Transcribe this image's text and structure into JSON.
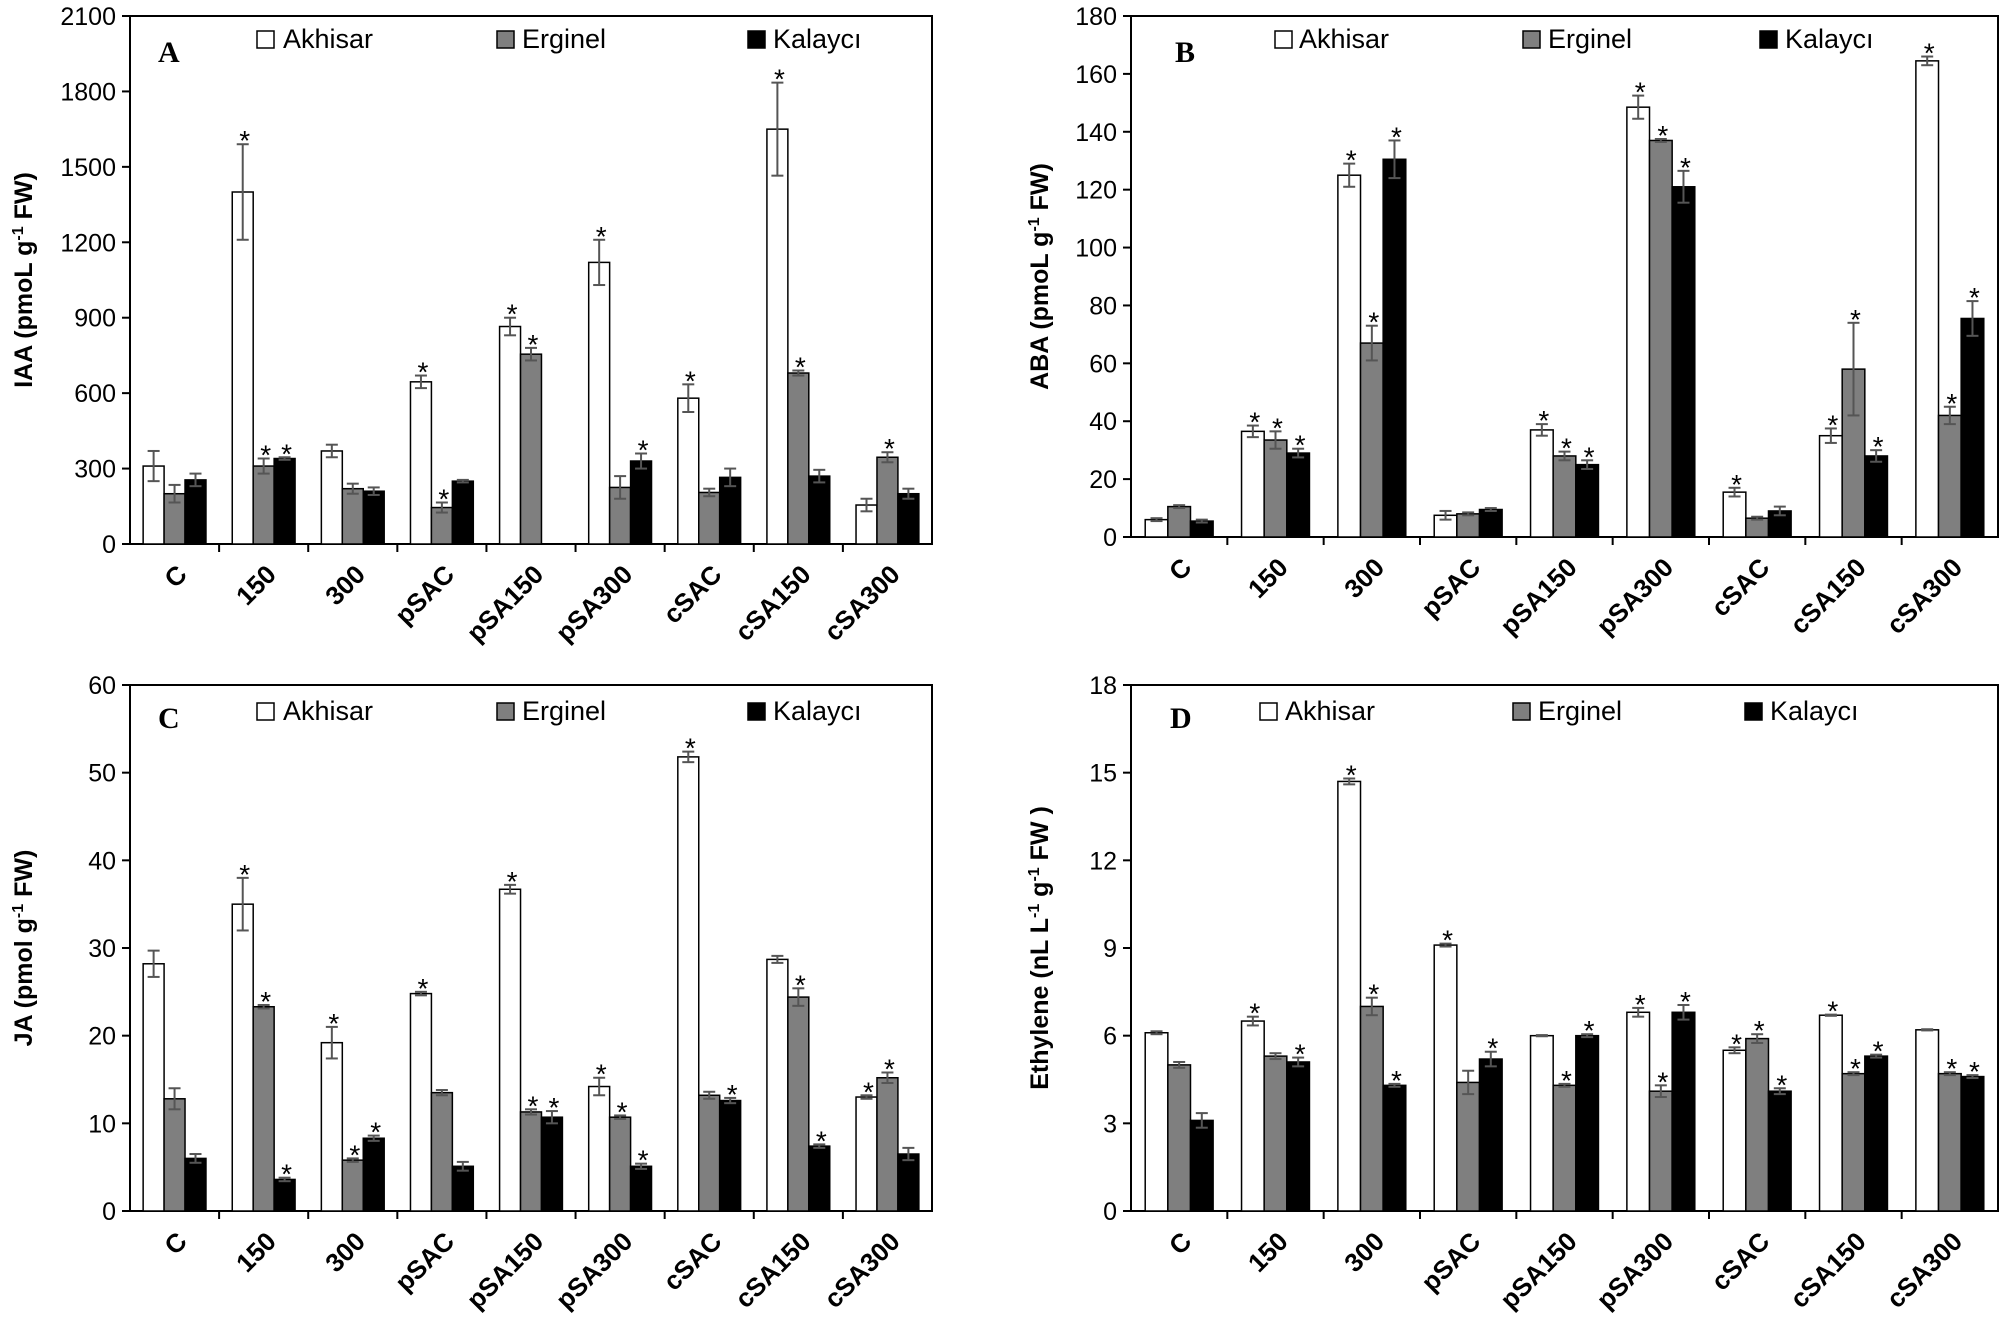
{
  "chart_data": [
    {
      "type": "bar",
      "panel_label": "A",
      "ylabel": "IAA (pmoL g⁻¹ FW)",
      "ylim": [
        0,
        2100
      ],
      "yticks": [
        0,
        300,
        600,
        900,
        1200,
        1500,
        1800,
        2100
      ],
      "categories": [
        "C",
        "150",
        "300",
        "pSAC",
        "pSA150",
        "pSA300",
        "cSAC",
        "cSA150",
        "cSA300"
      ],
      "legend": [
        "Akhisar",
        "Erginel",
        "Kalaycı"
      ],
      "series": [
        {
          "name": "Akhisar",
          "values": [
            310,
            1400,
            370,
            645,
            865,
            1120,
            580,
            1650,
            155
          ],
          "errors": [
            60,
            190,
            25,
            25,
            35,
            90,
            55,
            185,
            25
          ],
          "significant": [
            false,
            true,
            false,
            true,
            true,
            true,
            true,
            true,
            false
          ]
        },
        {
          "name": "Erginel",
          "values": [
            200,
            310,
            220,
            145,
            755,
            225,
            205,
            680,
            345
          ],
          "errors": [
            35,
            30,
            20,
            20,
            25,
            45,
            15,
            10,
            20
          ],
          "significant": [
            false,
            true,
            false,
            true,
            true,
            false,
            false,
            true,
            true
          ]
        },
        {
          "name": "Kalaycı",
          "values": [
            255,
            340,
            210,
            250,
            0,
            330,
            265,
            270,
            200
          ],
          "errors": [
            25,
            5,
            15,
            5,
            0,
            30,
            35,
            25,
            20
          ],
          "significant": [
            false,
            true,
            false,
            false,
            false,
            true,
            false,
            false,
            false
          ]
        }
      ]
    },
    {
      "type": "bar",
      "panel_label": "B",
      "ylabel": "ABA (pmoL g⁻¹ FW)",
      "ylim": [
        0,
        180
      ],
      "yticks": [
        0,
        20,
        40,
        60,
        80,
        100,
        120,
        140,
        160,
        180
      ],
      "categories": [
        "C",
        "150",
        "300",
        "pSAC",
        "pSA150",
        "pSA300",
        "cSAC",
        "cSA150",
        "cSA300"
      ],
      "legend": [
        "Akhisar",
        "Erginel",
        "Kalaycı"
      ],
      "series": [
        {
          "name": "Akhisar",
          "values": [
            6,
            36.5,
            125,
            7.5,
            37,
            148.5,
            15.5,
            35,
            164.5
          ],
          "errors": [
            0.5,
            2,
            4,
            1.5,
            2,
            4,
            1.5,
            2.5,
            1.5
          ],
          "significant": [
            false,
            true,
            true,
            false,
            true,
            true,
            true,
            true,
            true
          ]
        },
        {
          "name": "Erginel",
          "values": [
            10.5,
            33.5,
            67,
            8,
            28,
            137,
            6.5,
            58,
            42
          ],
          "errors": [
            0.5,
            3,
            6,
            0.5,
            1.5,
            0.5,
            0.5,
            16,
            3
          ],
          "significant": [
            false,
            true,
            true,
            false,
            true,
            true,
            false,
            true,
            true
          ]
        },
        {
          "name": "Kalaycı",
          "values": [
            5.5,
            29,
            130.5,
            9.5,
            25,
            121,
            9,
            28,
            75.5
          ],
          "errors": [
            0.5,
            1.5,
            6.5,
            0.5,
            1.5,
            5.5,
            1.5,
            2,
            6
          ],
          "significant": [
            false,
            true,
            true,
            false,
            true,
            true,
            false,
            true,
            true
          ]
        }
      ]
    },
    {
      "type": "bar",
      "panel_label": "C",
      "ylabel": "JA (pmol g⁻¹ FW)",
      "ylim": [
        0,
        60
      ],
      "yticks": [
        0,
        10,
        20,
        30,
        40,
        50,
        60
      ],
      "categories": [
        "C",
        "150",
        "300",
        "pSAC",
        "pSA150",
        "pSA300",
        "cSAC",
        "cSA150",
        "cSA300"
      ],
      "legend": [
        "Akhisar",
        "Erginel",
        "Kalaycı"
      ],
      "series": [
        {
          "name": "Akhisar",
          "values": [
            28.2,
            35,
            19.2,
            24.8,
            36.7,
            14.2,
            51.8,
            28.7,
            13
          ],
          "errors": [
            1.5,
            3,
            1.8,
            0.2,
            0.5,
            1,
            0.6,
            0.4,
            0.2
          ],
          "significant": [
            false,
            true,
            true,
            true,
            true,
            true,
            true,
            false,
            true
          ]
        },
        {
          "name": "Erginel",
          "values": [
            12.8,
            23.3,
            5.8,
            13.5,
            11.3,
            10.7,
            13.2,
            24.4,
            15.2
          ],
          "errors": [
            1.2,
            0.2,
            0.2,
            0.3,
            0.3,
            0.2,
            0.4,
            1,
            0.6
          ],
          "significant": [
            false,
            true,
            true,
            false,
            true,
            true,
            false,
            true,
            true
          ]
        },
        {
          "name": "Kalaycı",
          "values": [
            6,
            3.6,
            8.3,
            5.1,
            10.7,
            5.1,
            12.6,
            7.4,
            6.5
          ],
          "errors": [
            0.5,
            0.2,
            0.3,
            0.5,
            0.7,
            0.3,
            0.3,
            0.2,
            0.7
          ],
          "significant": [
            false,
            true,
            true,
            false,
            true,
            true,
            true,
            true,
            false
          ]
        }
      ]
    },
    {
      "type": "bar",
      "panel_label": "D",
      "ylabel": "Ethylene (nL L⁻¹ g⁻¹ FW )",
      "ylim": [
        0,
        18
      ],
      "yticks": [
        0,
        3,
        6,
        9,
        12,
        15,
        18
      ],
      "categories": [
        "C",
        "150",
        "300",
        "pSAC",
        "pSA150",
        "pSA300",
        "cSAC",
        "cSA150",
        "cSA300"
      ],
      "legend": [
        "Akhisar",
        "Erginel",
        "Kalaycı"
      ],
      "series": [
        {
          "name": "Akhisar",
          "values": [
            6.1,
            6.5,
            14.7,
            9.1,
            6,
            6.8,
            5.5,
            6.7,
            6.2
          ],
          "errors": [
            0.05,
            0.15,
            0.1,
            0.05,
            0.02,
            0.15,
            0.1,
            0.02,
            0.02
          ],
          "significant": [
            false,
            true,
            true,
            true,
            false,
            true,
            true,
            true,
            false
          ]
        },
        {
          "name": "Erginel",
          "values": [
            5,
            5.3,
            7,
            4.4,
            4.3,
            4.1,
            5.9,
            4.7,
            4.7
          ],
          "errors": [
            0.1,
            0.1,
            0.3,
            0.4,
            0.05,
            0.2,
            0.15,
            0.05,
            0.05
          ],
          "significant": [
            false,
            false,
            true,
            false,
            true,
            true,
            true,
            true,
            true
          ]
        },
        {
          "name": "Kalaycı",
          "values": [
            3.1,
            5.1,
            4.3,
            5.2,
            6,
            6.8,
            4.1,
            5.3,
            4.6
          ],
          "errors": [
            0.25,
            0.15,
            0.05,
            0.25,
            0.05,
            0.25,
            0.1,
            0.05,
            0.05
          ],
          "significant": [
            false,
            true,
            true,
            true,
            true,
            true,
            true,
            true,
            true
          ]
        }
      ]
    }
  ]
}
